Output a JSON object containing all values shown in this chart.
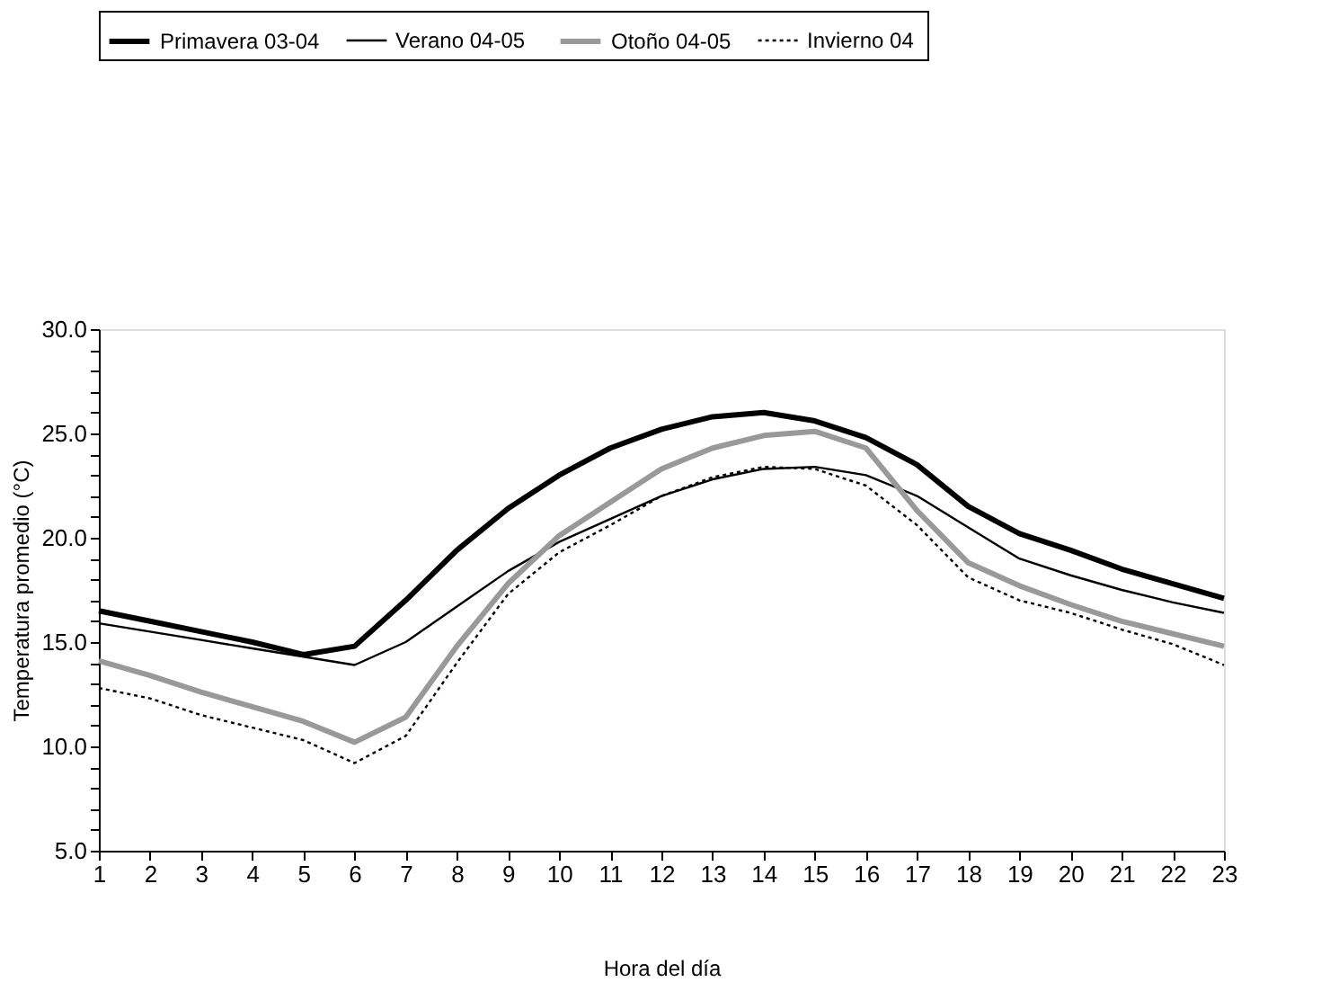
{
  "chart_data": {
    "type": "line",
    "xlabel": "Hora del día",
    "ylabel": "Temperatura promedio (°C)",
    "x": [
      1,
      2,
      3,
      4,
      5,
      6,
      7,
      8,
      9,
      10,
      11,
      12,
      13,
      14,
      15,
      16,
      17,
      18,
      19,
      20,
      21,
      22,
      23
    ],
    "xlim": [
      1,
      23
    ],
    "xticks": [
      1,
      2,
      3,
      4,
      5,
      6,
      7,
      8,
      9,
      10,
      11,
      12,
      13,
      14,
      15,
      16,
      17,
      18,
      19,
      20,
      21,
      22,
      23
    ],
    "ylim": [
      5,
      30
    ],
    "yticks": [
      {
        "value": 5,
        "label": "5.0"
      },
      {
        "value": 6,
        "label": null
      },
      {
        "value": 7,
        "label": null
      },
      {
        "value": 8,
        "label": null
      },
      {
        "value": 9,
        "label": null
      },
      {
        "value": 10,
        "label": "10.0"
      },
      {
        "value": 11,
        "label": null
      },
      {
        "value": 12,
        "label": null
      },
      {
        "value": 13,
        "label": null
      },
      {
        "value": 14,
        "label": null
      },
      {
        "value": 15,
        "label": "15.0"
      },
      {
        "value": 16,
        "label": null
      },
      {
        "value": 17,
        "label": null
      },
      {
        "value": 18,
        "label": null
      },
      {
        "value": 19,
        "label": null
      },
      {
        "value": 20,
        "label": "20.0"
      },
      {
        "value": 21,
        "label": null
      },
      {
        "value": 22,
        "label": null
      },
      {
        "value": 23,
        "label": null
      },
      {
        "value": 24,
        "label": null
      },
      {
        "value": 25,
        "label": "25.0"
      },
      {
        "value": 26,
        "label": null
      },
      {
        "value": 27,
        "label": null
      },
      {
        "value": 28,
        "label": null
      },
      {
        "value": 29,
        "label": null
      },
      {
        "value": 30,
        "label": "30.0"
      }
    ],
    "grid": false,
    "legend": "top",
    "marker": "none",
    "series": [
      {
        "name": "Primavera 03-04",
        "color": "#000000",
        "line_style": "solid",
        "values": [
          16.5,
          16.0,
          15.5,
          15.0,
          14.4,
          14.8,
          17.0,
          19.4,
          21.4,
          23.0,
          24.3,
          25.2,
          25.8,
          26.0,
          25.6,
          24.8,
          23.5,
          21.5,
          20.2,
          19.4,
          18.5,
          17.8,
          17.1
        ]
      },
      {
        "name": "Verano 04-05",
        "color": "#000000",
        "line_style": "solid",
        "values": [
          15.9,
          15.5,
          15.1,
          14.7,
          14.3,
          13.9,
          15.0,
          16.7,
          18.4,
          19.8,
          20.9,
          22.0,
          22.8,
          23.3,
          23.4,
          23.0,
          22.0,
          20.5,
          19.0,
          18.2,
          17.5,
          16.9,
          16.4
        ]
      },
      {
        "name": "Otoño 04-05",
        "color": "#999999",
        "line_style": "solid",
        "values": [
          14.1,
          13.4,
          12.6,
          11.9,
          11.2,
          10.2,
          11.4,
          14.8,
          17.8,
          20.1,
          21.7,
          23.3,
          24.3,
          24.9,
          25.1,
          24.3,
          21.3,
          18.8,
          17.7,
          16.8,
          16.0,
          15.4,
          14.8
        ]
      },
      {
        "name": "Invierno  04",
        "color": "#000000",
        "line_style": "dotted",
        "values": [
          12.8,
          12.3,
          11.5,
          10.9,
          10.3,
          9.2,
          10.5,
          14.0,
          17.3,
          19.3,
          20.6,
          22.0,
          22.9,
          23.4,
          23.3,
          22.5,
          20.6,
          18.1,
          17.0,
          16.4,
          15.6,
          14.9,
          13.9
        ]
      }
    ]
  }
}
